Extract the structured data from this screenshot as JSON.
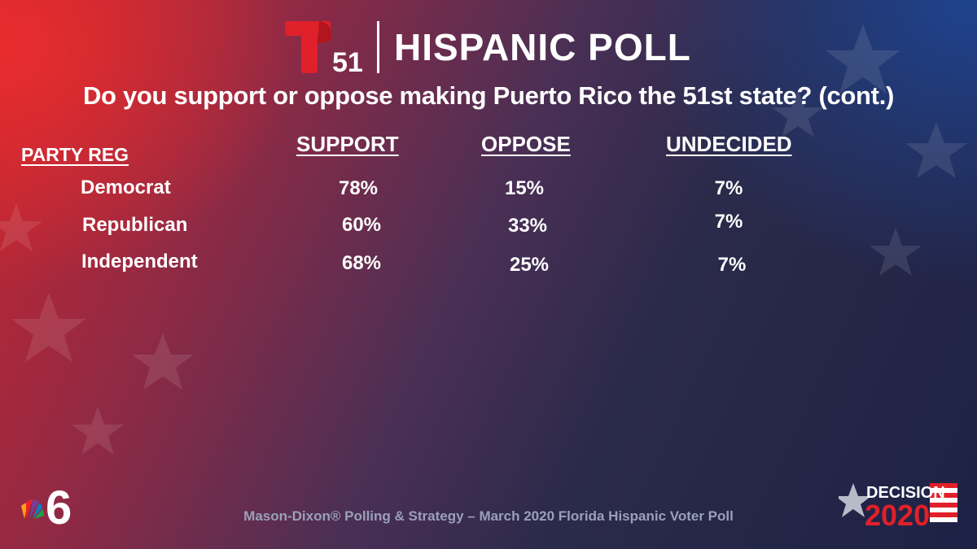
{
  "header": {
    "logo_number": "51",
    "title": "HISPANIC POLL"
  },
  "question": "Do you support or oppose making Puerto Rico the 51st state? (cont.)",
  "table": {
    "group_label": "PARTY REG",
    "columns": [
      "SUPPORT",
      "OPPOSE",
      "UNDECIDED"
    ],
    "rows": [
      {
        "label": "Democrat",
        "support": "78%",
        "oppose": "15%",
        "undecided": "7%"
      },
      {
        "label": "Republican",
        "support": "60%",
        "oppose": "33%",
        "undecided": "7%"
      },
      {
        "label": "Independent",
        "support": "68%",
        "oppose": "25%",
        "undecided": "7%"
      }
    ]
  },
  "footer": {
    "source": "Mason-Dixon® Polling & Strategy – March 2020 Florida Hispanic Voter Poll"
  },
  "badges": {
    "station_number": "6",
    "decision_word": "DECISION",
    "decision_year": "2020"
  },
  "colors": {
    "brand_red": "#e0202a",
    "background_blue": "#1d2246",
    "text": "#ffffff",
    "footer_text": "#9aa0b8"
  }
}
